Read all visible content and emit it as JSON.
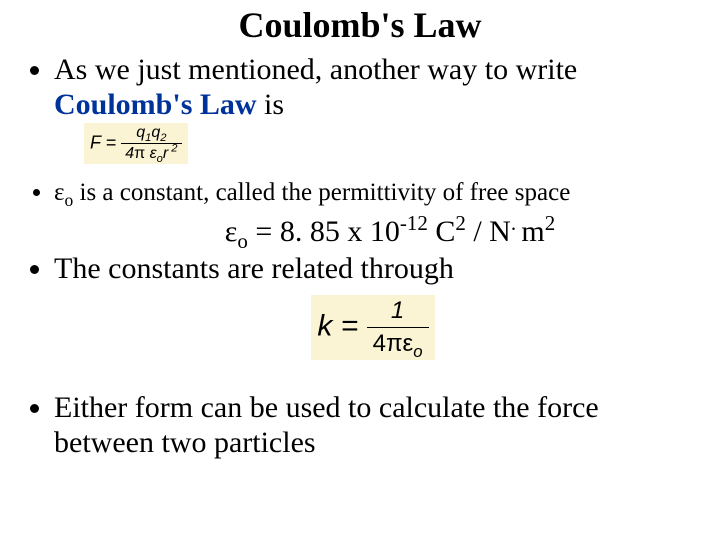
{
  "title": "Coulomb's Law",
  "bullets": {
    "b1_part1": "As we just mentioned, another way to write",
    "b1_part2_blue": "Coulomb's Law",
    "b1_part3": " is",
    "b2_part1": "ε",
    "b2_sub": "o",
    "b2_part2": "  is a constant, called the permittivity of free space",
    "b3": "The constants are related through",
    "b4": "Either form can be used to calculate the force between two particles"
  },
  "eps_line": {
    "pre": "ε",
    "sub1": "o",
    "eq": " = 8. 85 x 10",
    "sup1": "-12",
    "mid": " C",
    "sup2": "2",
    "mid2": " / N",
    "dot": ". ",
    "end": "m",
    "sup3": "2"
  },
  "formula1": {
    "F": "F",
    "eq": " = ",
    "num_q1": "q",
    "num_s1": "1",
    "num_q2": "q",
    "num_s2": "2",
    "den_4": "4",
    "den_pi": "π",
    "den_eps": " ε",
    "den_o": "o",
    "den_r": "r",
    "den_r2": " 2"
  },
  "formula2": {
    "k": "k",
    "eq": " = ",
    "num": "1",
    "den_4pi": "4πε",
    "den_o": "o"
  },
  "colors": {
    "blue": "#003399",
    "box_bg": "#fbf4d4",
    "text": "#000000"
  }
}
